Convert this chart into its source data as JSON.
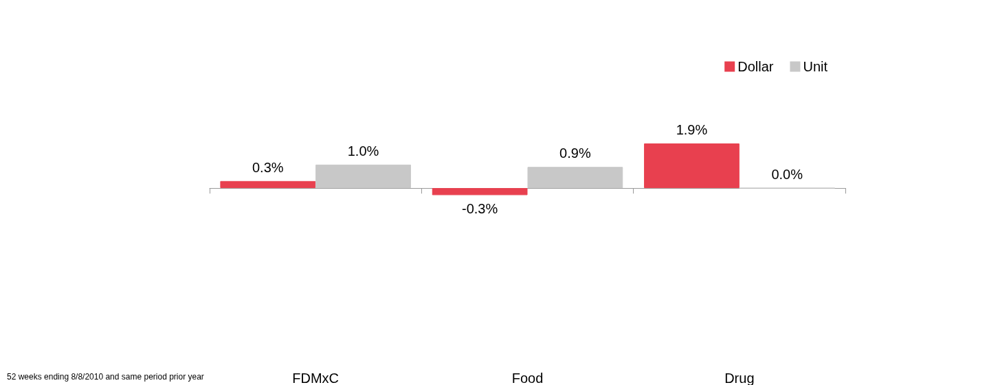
{
  "chart_data": {
    "type": "bar",
    "categories": [
      "FDMxC",
      "Food",
      "Drug"
    ],
    "series": [
      {
        "name": "Dollar",
        "color": "#e8404f",
        "values": [
          0.3,
          -0.3,
          1.9
        ],
        "value_labels": [
          "0.3%",
          "-0.3%",
          "1.9%"
        ]
      },
      {
        "name": "Unit",
        "color": "#c8c8c8",
        "values": [
          1.0,
          0.9,
          0.0
        ],
        "value_labels": [
          "1.0%",
          "0.9%",
          "0.0%"
        ]
      }
    ],
    "legend": "top right",
    "grid": false,
    "annotations": [
      "52 weeks ending 8/8/2010 and same period prior year"
    ]
  }
}
